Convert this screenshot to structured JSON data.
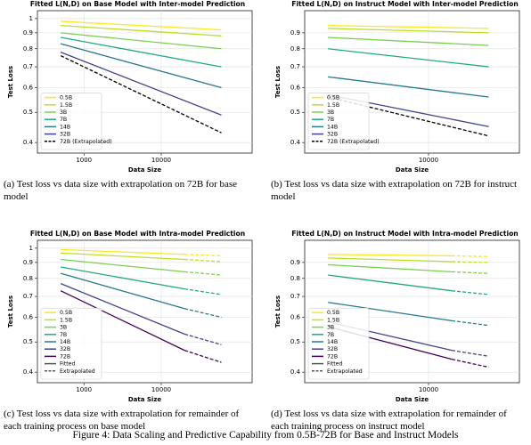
{
  "chart_data": [
    {
      "type": "line",
      "title": "Fitted L(N,D) on Base Model with Inter-model Prediction",
      "xlabel": "Data Size",
      "ylabel": "Test Loss",
      "caption": "(a) Test loss vs data size with extrapolation on 72B for base model",
      "xscale": "log",
      "yscale": "log",
      "grid": true,
      "legend": "lower left",
      "xlim": [
        250,
        150000
      ],
      "ylim": [
        0.37,
        1.06
      ],
      "xticks": [
        1000,
        10000
      ],
      "yticks": [
        0.4,
        0.5,
        0.6,
        0.7,
        0.8,
        0.9,
        1
      ],
      "x": [
        500,
        60000
      ],
      "series": [
        {
          "name": "0.5B",
          "color": "#fde725",
          "values": [
            0.98,
            0.92
          ]
        },
        {
          "name": "1.5B",
          "color": "#bddf26",
          "values": [
            0.95,
            0.88
          ]
        },
        {
          "name": "3B",
          "color": "#7ad151",
          "values": [
            0.9,
            0.8
          ]
        },
        {
          "name": "7B",
          "color": "#22a884",
          "values": [
            0.87,
            0.7
          ]
        },
        {
          "name": "14B",
          "color": "#2a788e",
          "values": [
            0.83,
            0.6
          ]
        },
        {
          "name": "32B",
          "color": "#414487",
          "values": [
            0.78,
            0.49
          ]
        },
        {
          "name": "72B (Extrapolated)",
          "color": "#000000",
          "dash": true,
          "values": [
            0.76,
            0.43
          ]
        }
      ]
    },
    {
      "type": "line",
      "title": "Fitted L(N,D) on Instruct Model with Inter-model Prediction",
      "xlabel": "Data Size",
      "ylabel": "Test Loss",
      "caption": "(b) Test loss vs data size with extrapolation on 72B for instruct model",
      "xscale": "log",
      "yscale": "log",
      "grid": true,
      "legend": "lower left",
      "xlim": [
        250,
        150000
      ],
      "ylim": [
        0.37,
        1.06
      ],
      "xticks": [
        10000
      ],
      "yticks": [
        0.4,
        0.5,
        0.6,
        0.7,
        0.8,
        0.9
      ],
      "x": [
        500,
        60000
      ],
      "series": [
        {
          "name": "0.5B",
          "color": "#fde725",
          "values": [
            0.95,
            0.93
          ]
        },
        {
          "name": "1.5B",
          "color": "#bddf26",
          "values": [
            0.93,
            0.9
          ]
        },
        {
          "name": "3B",
          "color": "#7ad151",
          "values": [
            0.87,
            0.82
          ]
        },
        {
          "name": "7B",
          "color": "#22a884",
          "values": [
            0.8,
            0.7
          ]
        },
        {
          "name": "14B",
          "color": "#2a788e",
          "values": [
            0.65,
            0.56
          ]
        },
        {
          "name": "32B",
          "color": "#414487",
          "values": [
            0.57,
            0.45
          ]
        },
        {
          "name": "72B (Extrapolated)",
          "color": "#000000",
          "dash": true,
          "values": [
            0.56,
            0.42
          ]
        }
      ]
    },
    {
      "type": "line",
      "title": "Fitted L(N,D) on Base Model with Intra-model Prediction",
      "xlabel": "Data Size",
      "ylabel": "Test Loss",
      "caption": "(c) Test loss vs data size with extrapolation for remainder of each training process on base model",
      "xscale": "log",
      "yscale": "log",
      "grid": true,
      "legend": "lower left",
      "xlim": [
        250,
        150000
      ],
      "ylim": [
        0.37,
        1.06
      ],
      "xticks": [
        1000,
        10000
      ],
      "yticks": [
        0.4,
        0.5,
        0.6,
        0.7,
        0.8,
        0.9,
        1
      ],
      "x": [
        500,
        20000,
        60000
      ],
      "line_styles": [
        {
          "name": "Fitted",
          "dash": false
        },
        {
          "name": "Extrapolated",
          "dash": true
        }
      ],
      "series": [
        {
          "name": "0.5B",
          "color": "#fde725",
          "values": [
            0.99,
            0.955,
            null
          ],
          "extrapolated": [
            null,
            0.955,
            0.945
          ]
        },
        {
          "name": "1.5B",
          "color": "#bddf26",
          "values": [
            0.965,
            0.92,
            null
          ],
          "extrapolated": [
            null,
            0.92,
            0.905
          ]
        },
        {
          "name": "3B",
          "color": "#7ad151",
          "values": [
            0.92,
            0.84,
            null
          ],
          "extrapolated": [
            null,
            0.84,
            0.82
          ]
        },
        {
          "name": "7B",
          "color": "#22a884",
          "values": [
            0.87,
            0.74,
            null
          ],
          "extrapolated": [
            null,
            0.74,
            0.71
          ]
        },
        {
          "name": "14B",
          "color": "#2a788e",
          "values": [
            0.83,
            0.64,
            null
          ],
          "extrapolated": [
            null,
            0.64,
            0.6
          ]
        },
        {
          "name": "32B",
          "color": "#414487",
          "values": [
            0.77,
            0.53,
            null
          ],
          "extrapolated": [
            null,
            0.53,
            0.49
          ]
        },
        {
          "name": "72B",
          "color": "#440154",
          "values": [
            0.73,
            0.47,
            null
          ],
          "extrapolated": [
            null,
            0.47,
            0.43
          ]
        }
      ]
    },
    {
      "type": "line",
      "title": "Fitted L(N,D) on Instruct Model with Intra-model Prediction",
      "xlabel": "Data Size",
      "ylabel": "Test Loss",
      "caption": "(d) Test loss vs data size with extrapolation for remainder of each training process on instruct model",
      "xscale": "log",
      "yscale": "log",
      "grid": true,
      "legend": "lower left",
      "xlim": [
        250,
        150000
      ],
      "ylim": [
        0.37,
        1.06
      ],
      "xticks": [
        10000
      ],
      "yticks": [
        0.4,
        0.5,
        0.6,
        0.7,
        0.8,
        0.9
      ],
      "x": [
        500,
        20000,
        60000
      ],
      "line_styles": [
        {
          "name": "Fitted",
          "dash": false
        },
        {
          "name": "Extrapolated",
          "dash": true
        }
      ],
      "series": [
        {
          "name": "0.5B",
          "color": "#fde725",
          "values": [
            0.955,
            0.945,
            null
          ],
          "extrapolated": [
            null,
            0.945,
            0.94
          ]
        },
        {
          "name": "1.5B",
          "color": "#bddf26",
          "values": [
            0.93,
            0.905,
            null
          ],
          "extrapolated": [
            null,
            0.905,
            0.9
          ]
        },
        {
          "name": "3B",
          "color": "#7ad151",
          "values": [
            0.885,
            0.84,
            null
          ],
          "extrapolated": [
            null,
            0.84,
            0.83
          ]
        },
        {
          "name": "7B",
          "color": "#22a884",
          "values": [
            0.82,
            0.73,
            null
          ],
          "extrapolated": [
            null,
            0.73,
            0.71
          ]
        },
        {
          "name": "14B",
          "color": "#2a788e",
          "values": [
            0.67,
            0.585,
            null
          ],
          "extrapolated": [
            null,
            0.585,
            0.565
          ]
        },
        {
          "name": "32B",
          "color": "#414487",
          "values": [
            0.58,
            0.47,
            null
          ],
          "extrapolated": [
            null,
            0.47,
            0.45
          ]
        },
        {
          "name": "72B",
          "color": "#440154",
          "values": [
            0.56,
            0.44,
            null
          ],
          "extrapolated": [
            null,
            0.44,
            0.415
          ]
        }
      ]
    }
  ],
  "figure_caption": "Figure 4: Data Scaling and Predictive Capability from 0.5B-72B for Base and Instruct Models"
}
